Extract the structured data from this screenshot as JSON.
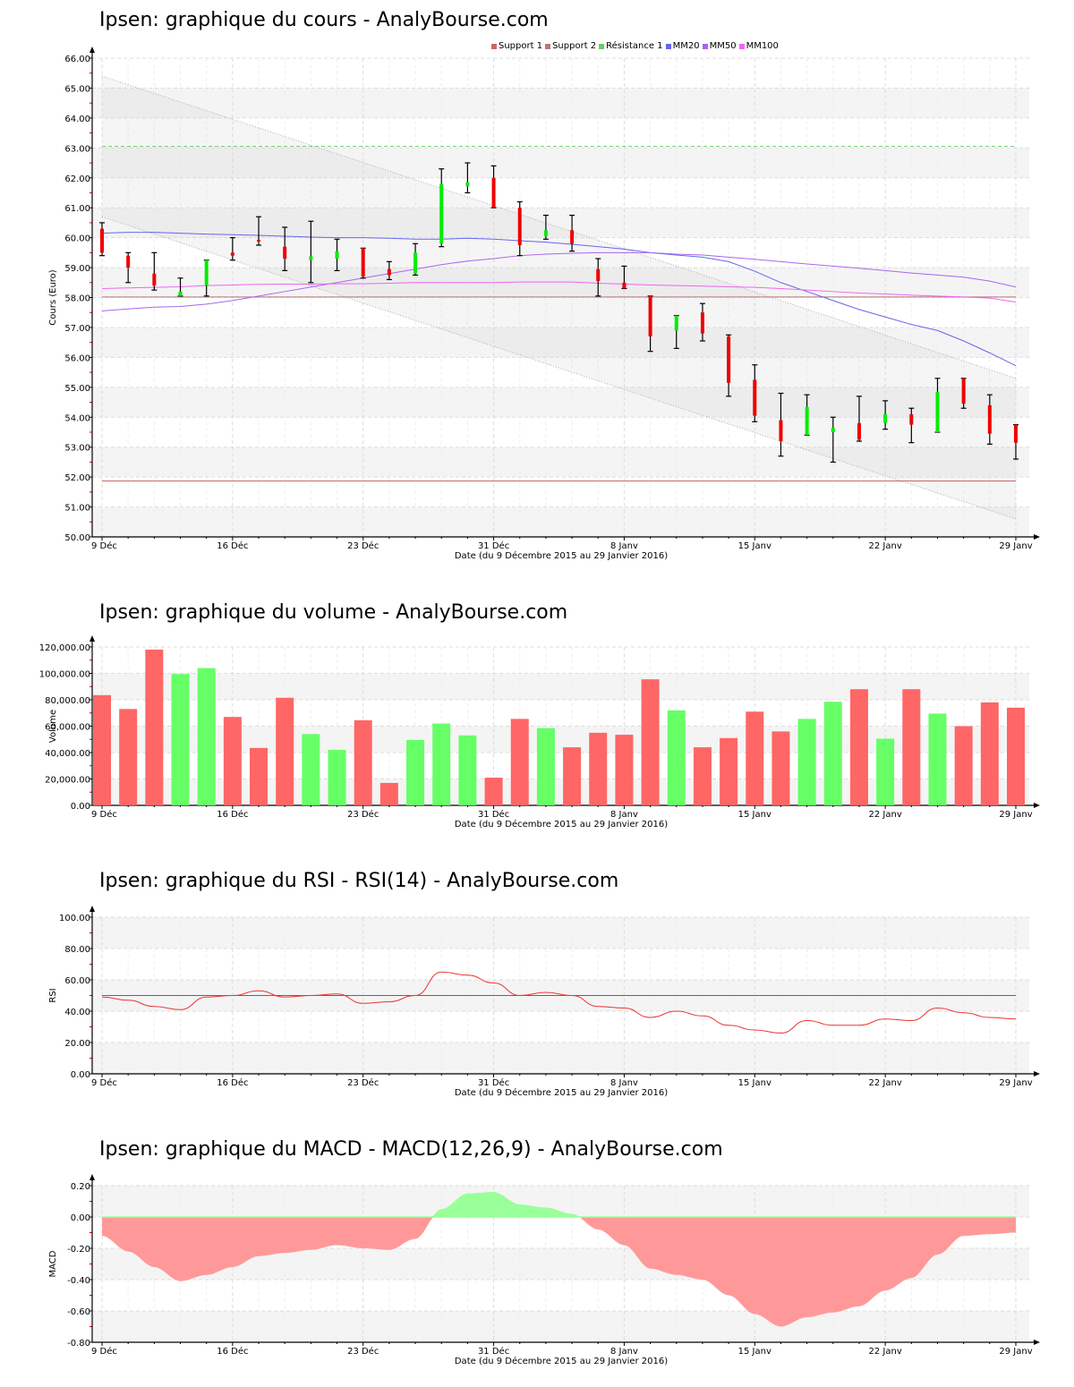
{
  "titles": {
    "price": "Ipsen: graphique du cours - AnalyBourse.com",
    "volume": "Ipsen: graphique du volume - AnalyBourse.com",
    "rsi": "Ipsen: graphique du RSI - RSI(14) - AnalyBourse.com",
    "macd": "Ipsen: graphique du MACD - MACD(12,26,9) - AnalyBourse.com"
  },
  "legend": [
    {
      "label": "Support 1",
      "color": "#cc6666"
    },
    {
      "label": "Support 2",
      "color": "#bb7777"
    },
    {
      "label": "Résistance 1",
      "color": "#66cc66"
    },
    {
      "label": "MM20",
      "color": "#6666ee"
    },
    {
      "label": "MM50",
      "color": "#aa66ee"
    },
    {
      "label": "MM100",
      "color": "#ee66ee"
    }
  ],
  "x_axis": {
    "label": "Date (du 9 Décembre 2015 au 29 Janvier 2016)",
    "ticks": [
      {
        "label": "9 Déc",
        "index": 0
      },
      {
        "label": "16 Déc",
        "index": 5
      },
      {
        "label": "23 Déc",
        "index": 10
      },
      {
        "label": "31 Déc",
        "index": 15
      },
      {
        "label": "8 Janv",
        "index": 20
      },
      {
        "label": "15 Janv",
        "index": 25
      },
      {
        "label": "22 Janv",
        "index": 30
      },
      {
        "label": "29 Janv",
        "index": 35
      }
    ]
  },
  "colors": {
    "up": "#00ee00",
    "down": "#ee0000",
    "vol_up": "#66ff66",
    "vol_down": "#ff6666",
    "rsi_line": "#ee3333",
    "macd_pos": "#99ff99",
    "macd_neg": "#ff9999"
  },
  "chart_data": [
    {
      "type": "candlestick",
      "title": "Ipsen: graphique du cours - AnalyBourse.com",
      "xlabel": "Date (du 9 Décembre 2015 au 29 Janvier 2016)",
      "ylabel": "Cours (Euro)",
      "ylim": [
        50,
        66
      ],
      "yticks": [
        "50.00",
        "51.00",
        "52.00",
        "53.00",
        "54.00",
        "55.00",
        "56.00",
        "57.00",
        "58.00",
        "59.00",
        "60.00",
        "61.00",
        "62.00",
        "63.00",
        "64.00",
        "65.00",
        "66.00"
      ],
      "grid": true,
      "legend_position": "top",
      "candles": [
        {
          "o": 60.3,
          "h": 60.5,
          "l": 59.4,
          "c": 59.5
        },
        {
          "o": 59.4,
          "h": 59.5,
          "l": 58.5,
          "c": 59.0
        },
        {
          "o": 58.8,
          "h": 59.5,
          "l": 58.25,
          "c": 58.4
        },
        {
          "o": 58.05,
          "h": 58.65,
          "l": 58.05,
          "c": 58.2
        },
        {
          "o": 58.4,
          "h": 59.25,
          "l": 58.05,
          "c": 59.25
        },
        {
          "o": 59.5,
          "h": 60.0,
          "l": 59.25,
          "c": 59.4
        },
        {
          "o": 59.93,
          "h": 60.7,
          "l": 59.75,
          "c": 59.87
        },
        {
          "o": 59.7,
          "h": 60.35,
          "l": 58.9,
          "c": 59.3
        },
        {
          "o": 59.25,
          "h": 60.55,
          "l": 58.5,
          "c": 59.38
        },
        {
          "o": 59.3,
          "h": 59.95,
          "l": 58.9,
          "c": 59.55
        },
        {
          "o": 59.65,
          "h": 59.65,
          "l": 58.65,
          "c": 58.7
        },
        {
          "o": 58.95,
          "h": 59.2,
          "l": 58.6,
          "c": 58.75
        },
        {
          "o": 58.8,
          "h": 59.8,
          "l": 58.75,
          "c": 59.5
        },
        {
          "o": 59.8,
          "h": 62.3,
          "l": 59.7,
          "c": 61.8
        },
        {
          "o": 61.72,
          "h": 62.5,
          "l": 61.5,
          "c": 61.85
        },
        {
          "o": 62.0,
          "h": 62.4,
          "l": 61.0,
          "c": 61.0
        },
        {
          "o": 61.0,
          "h": 61.2,
          "l": 59.4,
          "c": 59.75
        },
        {
          "o": 60.05,
          "h": 60.75,
          "l": 59.95,
          "c": 60.25
        },
        {
          "o": 60.25,
          "h": 60.75,
          "l": 59.55,
          "c": 59.8
        },
        {
          "o": 58.95,
          "h": 59.3,
          "l": 58.05,
          "c": 58.55
        },
        {
          "o": 58.5,
          "h": 59.05,
          "l": 58.3,
          "c": 58.3
        },
        {
          "o": 58.05,
          "h": 58.05,
          "l": 56.2,
          "c": 56.7
        },
        {
          "o": 56.9,
          "h": 57.4,
          "l": 56.3,
          "c": 57.4
        },
        {
          "o": 57.5,
          "h": 57.8,
          "l": 56.55,
          "c": 56.8
        },
        {
          "o": 56.7,
          "h": 56.75,
          "l": 54.7,
          "c": 55.15
        },
        {
          "o": 55.25,
          "h": 55.75,
          "l": 53.85,
          "c": 54.05
        },
        {
          "o": 53.9,
          "h": 54.8,
          "l": 52.7,
          "c": 53.2
        },
        {
          "o": 53.4,
          "h": 54.75,
          "l": 53.4,
          "c": 54.35
        },
        {
          "o": 53.5,
          "h": 54.0,
          "l": 52.5,
          "c": 53.65
        },
        {
          "o": 53.8,
          "h": 54.7,
          "l": 53.2,
          "c": 53.25
        },
        {
          "o": 53.8,
          "h": 54.55,
          "l": 53.6,
          "c": 54.1
        },
        {
          "o": 54.1,
          "h": 54.3,
          "l": 53.15,
          "c": 53.75
        },
        {
          "o": 53.5,
          "h": 55.3,
          "l": 53.5,
          "c": 54.85
        },
        {
          "o": 55.3,
          "h": 55.3,
          "l": 54.3,
          "c": 54.45
        },
        {
          "o": 54.4,
          "h": 54.75,
          "l": 53.1,
          "c": 53.45
        },
        {
          "o": 53.75,
          "h": 53.75,
          "l": 52.6,
          "c": 53.15
        }
      ],
      "lines": {
        "support1": 51.87,
        "support2": 58.02,
        "resistance1": 63.05,
        "mm20": [
          60.15,
          60.18,
          60.18,
          60.15,
          60.12,
          60.1,
          60.08,
          60.05,
          60.02,
          60.0,
          60.0,
          59.98,
          59.95,
          59.95,
          59.98,
          59.95,
          59.9,
          59.85,
          59.78,
          59.7,
          59.62,
          59.5,
          59.42,
          59.35,
          59.2,
          58.88,
          58.5,
          58.2,
          57.9,
          57.6,
          57.35,
          57.1,
          56.9,
          56.55,
          56.15,
          55.72
        ],
        "mm50": [
          57.55,
          57.62,
          57.68,
          57.7,
          57.78,
          57.9,
          58.05,
          58.2,
          58.35,
          58.5,
          58.65,
          58.8,
          58.95,
          59.1,
          59.22,
          59.3,
          59.4,
          59.45,
          59.48,
          59.5,
          59.5,
          59.5,
          59.45,
          59.42,
          59.35,
          59.28,
          59.2,
          59.12,
          59.05,
          58.98,
          58.9,
          58.82,
          58.75,
          58.68,
          58.55,
          58.35
        ],
        "mm100": [
          58.3,
          58.32,
          58.34,
          58.36,
          58.4,
          58.42,
          58.44,
          58.45,
          58.45,
          58.46,
          58.46,
          58.48,
          58.5,
          58.5,
          58.5,
          58.5,
          58.52,
          58.52,
          58.52,
          58.48,
          58.45,
          58.42,
          58.4,
          58.38,
          58.36,
          58.34,
          58.3,
          58.25,
          58.2,
          58.15,
          58.12,
          58.08,
          58.05,
          58.02,
          57.98,
          57.85
        ],
        "channel_upper": [
          65.4,
          55.3
        ],
        "channel_lower": [
          60.7,
          50.6
        ]
      }
    },
    {
      "type": "bar",
      "title": "Ipsen: graphique du volume - AnalyBourse.com",
      "xlabel": "Date (du 9 Décembre 2015 au 29 Janvier 2016)",
      "ylabel": "Volume",
      "ylim": [
        0,
        120000
      ],
      "yticks": [
        "0.00",
        "20,000.00",
        "40,000.00",
        "60,000.00",
        "80,000.00",
        "100,000.00",
        "120,000.00"
      ],
      "grid": true,
      "values": [
        83500,
        73000,
        118000,
        99500,
        104000,
        67000,
        43500,
        81500,
        54000,
        42000,
        64500,
        17000,
        49500,
        62000,
        53000,
        21000,
        65500,
        58500,
        44000,
        55000,
        53500,
        95500,
        72000,
        44000,
        51000,
        71000,
        56000,
        65500,
        78500,
        88000,
        50500,
        88000,
        69500,
        60000,
        78000,
        74000
      ],
      "up": [
        false,
        false,
        false,
        true,
        true,
        false,
        false,
        false,
        true,
        true,
        false,
        false,
        true,
        true,
        true,
        false,
        false,
        true,
        false,
        false,
        false,
        false,
        true,
        false,
        false,
        false,
        false,
        true,
        true,
        false,
        true,
        false,
        true,
        false,
        false,
        false
      ]
    },
    {
      "type": "line",
      "title": "Ipsen: graphique du RSI - RSI(14) - AnalyBourse.com",
      "xlabel": "Date (du 9 Décembre 2015 au 29 Janvier 2016)",
      "ylabel": "RSI",
      "ylim": [
        0,
        100
      ],
      "yticks": [
        "0.00",
        "20.00",
        "40.00",
        "60.00",
        "80.00",
        "100.00"
      ],
      "grid": true,
      "reference_line": 50,
      "series": [
        {
          "name": "RSI(14)",
          "values": [
            49,
            47,
            43,
            41,
            49,
            50,
            53,
            49,
            50,
            51,
            45,
            46,
            50,
            65,
            63,
            58,
            50,
            52,
            50,
            43,
            42,
            36,
            40,
            37,
            31,
            28,
            26,
            34,
            31,
            31,
            35,
            34,
            42,
            39,
            36,
            35
          ]
        }
      ]
    },
    {
      "type": "area",
      "title": "Ipsen: graphique du MACD - MACD(12,26,9) - AnalyBourse.com",
      "xlabel": "Date (du 9 Décembre 2015 au 29 Janvier 2016)",
      "ylabel": "MACD",
      "ylim": [
        -0.8,
        0.2
      ],
      "yticks": [
        "-0.80",
        "-0.60",
        "-0.40",
        "-0.20",
        "0.00",
        "0.20"
      ],
      "grid": true,
      "series": [
        {
          "name": "MACD(12,26,9)",
          "values": [
            -0.12,
            -0.22,
            -0.32,
            -0.41,
            -0.37,
            -0.32,
            -0.25,
            -0.23,
            -0.21,
            -0.18,
            -0.2,
            -0.21,
            -0.14,
            0.05,
            0.15,
            0.16,
            0.08,
            0.06,
            0.02,
            -0.08,
            -0.18,
            -0.33,
            -0.37,
            -0.4,
            -0.5,
            -0.62,
            -0.7,
            -0.64,
            -0.61,
            -0.57,
            -0.47,
            -0.39,
            -0.24,
            -0.12,
            -0.11,
            -0.1
          ]
        }
      ]
    }
  ]
}
